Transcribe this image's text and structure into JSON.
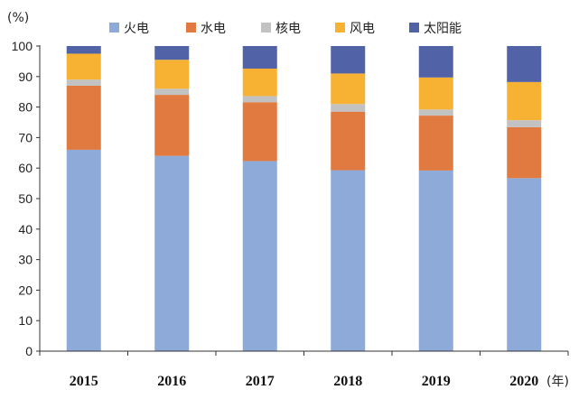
{
  "chart_data": {
    "type": "bar",
    "stacked": true,
    "categories": [
      "2015",
      "2016",
      "2017",
      "2018",
      "2019",
      "2020"
    ],
    "x_unit": "(年)",
    "y_unit": "(%)",
    "ylim": [
      0,
      100
    ],
    "yticks": [
      0,
      10,
      20,
      30,
      40,
      50,
      60,
      70,
      80,
      90,
      100
    ],
    "grid": false,
    "legend_position": "top",
    "series": [
      {
        "name": "火电",
        "color": "#8eaad8",
        "values": [
          66,
          64,
          62.3,
          59.3,
          59.2,
          56.7
        ]
      },
      {
        "name": "水电",
        "color": "#e07a41",
        "values": [
          21,
          20,
          19.3,
          19.2,
          18.0,
          16.7
        ]
      },
      {
        "name": "核电",
        "color": "#c2c2c2",
        "values": [
          2,
          2,
          2.0,
          2.5,
          2.0,
          2.3
        ]
      },
      {
        "name": "风电",
        "color": "#f7b133",
        "values": [
          8.5,
          9.5,
          9.0,
          10.0,
          10.5,
          12.5
        ]
      },
      {
        "name": "太阳能",
        "color": "#5262a7",
        "values": [
          2.5,
          4.5,
          7.4,
          9.0,
          10.3,
          11.8
        ]
      }
    ]
  }
}
